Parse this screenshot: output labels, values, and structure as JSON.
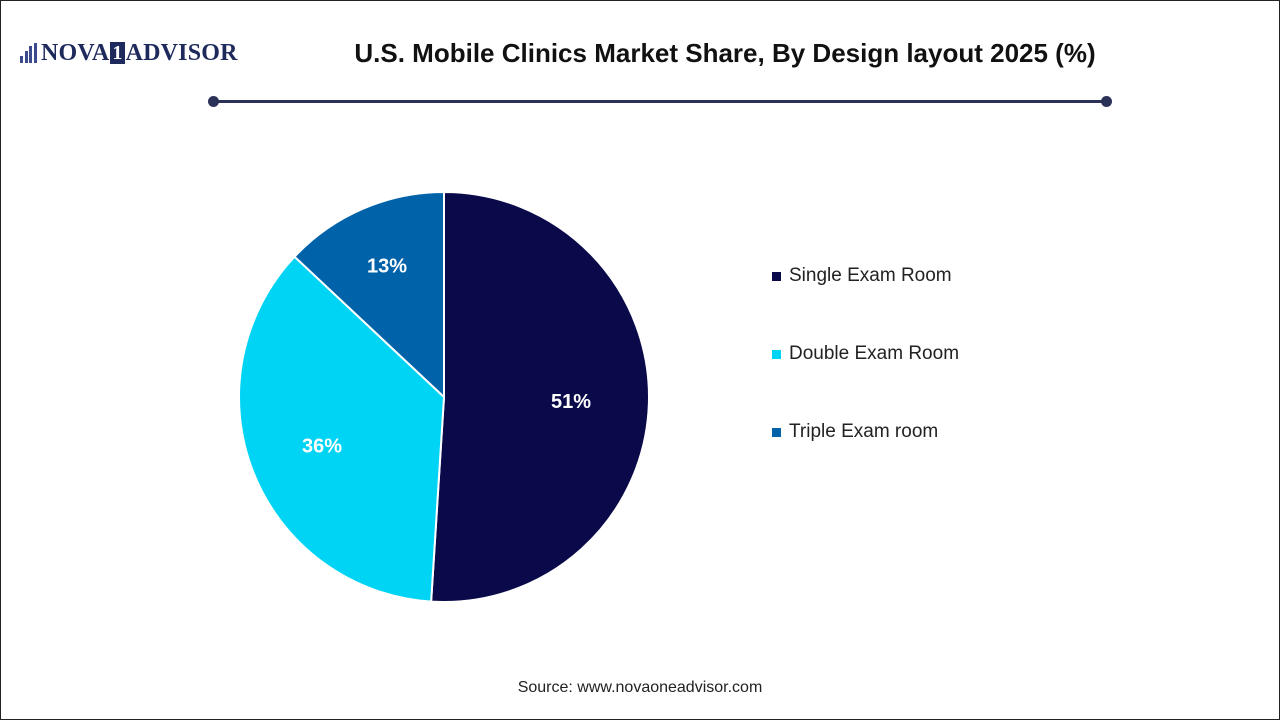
{
  "logo": {
    "part1": "NOVA",
    "box": "1",
    "part2": "ADVISOR"
  },
  "chart_data": {
    "type": "pie",
    "title": "U.S. Mobile Clinics Market Share, By Design layout 2025 (%)",
    "categories": [
      "Single Exam Room",
      "Double Exam Room",
      "Triple Exam room"
    ],
    "values": [
      51,
      36,
      13
    ],
    "labels": [
      "51%",
      "36%",
      "13%"
    ],
    "colors": [
      "#0a0a4a",
      "#00d4f5",
      "#0063a9"
    ],
    "legend_position": "right"
  },
  "source": "Source: www.novaoneadvisor.com"
}
